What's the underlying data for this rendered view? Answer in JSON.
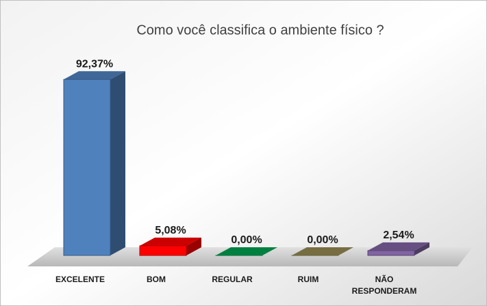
{
  "chart_data": {
    "type": "bar3d",
    "title": "Como você classifica o ambiente físico ?",
    "categories": [
      "EXCELENTE",
      "BOM",
      "REGULAR",
      "RUIM",
      "NÃO RESPONDERAM"
    ],
    "values": [
      92.37,
      5.08,
      0,
      0,
      2.54
    ],
    "value_labels": [
      "92,37%",
      "5,08%",
      "0,00%",
      "0,00%",
      "2,54%"
    ],
    "colors": [
      "#4f81bd",
      "#ff0000",
      "#00a050",
      "#938953",
      "#8064a2"
    ]
  }
}
